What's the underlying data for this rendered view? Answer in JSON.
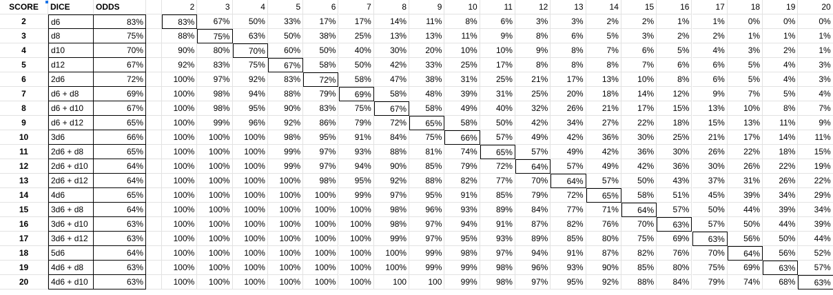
{
  "headers": {
    "score": "SCORE",
    "dice": "DICE",
    "odds": "ODDS",
    "columns": [
      "2",
      "3",
      "4",
      "5",
      "6",
      "7",
      "8",
      "9",
      "10",
      "11",
      "12",
      "13",
      "14",
      "15",
      "16",
      "17",
      "18",
      "19",
      "20"
    ]
  },
  "rows": [
    {
      "score": "2",
      "dice": "d6",
      "odds": "83%",
      "values": [
        "83%",
        "67%",
        "50%",
        "33%",
        "17%",
        "17%",
        "14%",
        "11%",
        "8%",
        "6%",
        "3%",
        "3%",
        "2%",
        "2%",
        "1%",
        "1%",
        "0%",
        "0%",
        "0%"
      ]
    },
    {
      "score": "3",
      "dice": "d8",
      "odds": "75%",
      "values": [
        "88%",
        "75%",
        "63%",
        "50%",
        "38%",
        "25%",
        "13%",
        "13%",
        "11%",
        "9%",
        "8%",
        "6%",
        "5%",
        "3%",
        "2%",
        "2%",
        "1%",
        "1%",
        "1%"
      ]
    },
    {
      "score": "4",
      "dice": "d10",
      "odds": "70%",
      "values": [
        "90%",
        "80%",
        "70%",
        "60%",
        "50%",
        "40%",
        "30%",
        "20%",
        "10%",
        "10%",
        "9%",
        "8%",
        "7%",
        "6%",
        "5%",
        "4%",
        "3%",
        "2%",
        "1%"
      ]
    },
    {
      "score": "5",
      "dice": "d12",
      "odds": "67%",
      "values": [
        "92%",
        "83%",
        "75%",
        "67%",
        "58%",
        "50%",
        "42%",
        "33%",
        "25%",
        "17%",
        "8%",
        "8%",
        "8%",
        "7%",
        "6%",
        "6%",
        "5%",
        "4%",
        "3%"
      ]
    },
    {
      "score": "6",
      "dice": "2d6",
      "odds": "72%",
      "values": [
        "100%",
        "97%",
        "92%",
        "83%",
        "72%",
        "58%",
        "47%",
        "38%",
        "31%",
        "25%",
        "21%",
        "17%",
        "13%",
        "10%",
        "8%",
        "6%",
        "5%",
        "4%",
        "3%"
      ]
    },
    {
      "score": "7",
      "dice": "d6 + d8",
      "odds": "69%",
      "values": [
        "100%",
        "98%",
        "94%",
        "88%",
        "79%",
        "69%",
        "58%",
        "48%",
        "39%",
        "31%",
        "25%",
        "20%",
        "18%",
        "14%",
        "12%",
        "9%",
        "7%",
        "5%",
        "4%"
      ]
    },
    {
      "score": "8",
      "dice": "d6 + d10",
      "odds": "67%",
      "values": [
        "100%",
        "98%",
        "95%",
        "90%",
        "83%",
        "75%",
        "67%",
        "58%",
        "49%",
        "40%",
        "32%",
        "26%",
        "21%",
        "17%",
        "15%",
        "13%",
        "10%",
        "8%",
        "7%"
      ]
    },
    {
      "score": "9",
      "dice": "d6 + d12",
      "odds": "65%",
      "values": [
        "100%",
        "99%",
        "96%",
        "92%",
        "86%",
        "79%",
        "72%",
        "65%",
        "58%",
        "50%",
        "42%",
        "34%",
        "27%",
        "22%",
        "18%",
        "15%",
        "13%",
        "11%",
        "9%"
      ]
    },
    {
      "score": "10",
      "dice": "3d6",
      "odds": "66%",
      "values": [
        "100%",
        "100%",
        "100%",
        "98%",
        "95%",
        "91%",
        "84%",
        "75%",
        "66%",
        "57%",
        "49%",
        "42%",
        "36%",
        "30%",
        "25%",
        "21%",
        "17%",
        "14%",
        "11%"
      ]
    },
    {
      "score": "11",
      "dice": "2d6 + d8",
      "odds": "65%",
      "values": [
        "100%",
        "100%",
        "100%",
        "99%",
        "97%",
        "93%",
        "88%",
        "81%",
        "74%",
        "65%",
        "57%",
        "49%",
        "42%",
        "36%",
        "30%",
        "26%",
        "22%",
        "18%",
        "15%"
      ]
    },
    {
      "score": "12",
      "dice": "2d6 + d10",
      "odds": "64%",
      "values": [
        "100%",
        "100%",
        "100%",
        "99%",
        "97%",
        "94%",
        "90%",
        "85%",
        "79%",
        "72%",
        "64%",
        "57%",
        "49%",
        "42%",
        "36%",
        "30%",
        "26%",
        "22%",
        "19%"
      ]
    },
    {
      "score": "13",
      "dice": "2d6 + d12",
      "odds": "64%",
      "values": [
        "100%",
        "100%",
        "100%",
        "100%",
        "98%",
        "95%",
        "92%",
        "88%",
        "82%",
        "77%",
        "70%",
        "64%",
        "57%",
        "50%",
        "43%",
        "37%",
        "31%",
        "26%",
        "22%"
      ]
    },
    {
      "score": "14",
      "dice": "4d6",
      "odds": "65%",
      "values": [
        "100%",
        "100%",
        "100%",
        "100%",
        "100%",
        "99%",
        "97%",
        "95%",
        "91%",
        "85%",
        "79%",
        "72%",
        "65%",
        "58%",
        "51%",
        "45%",
        "39%",
        "34%",
        "29%"
      ]
    },
    {
      "score": "15",
      "dice": "3d6 + d8",
      "odds": "64%",
      "values": [
        "100%",
        "100%",
        "100%",
        "100%",
        "100%",
        "100%",
        "98%",
        "96%",
        "93%",
        "89%",
        "84%",
        "77%",
        "71%",
        "64%",
        "57%",
        "50%",
        "44%",
        "39%",
        "34%"
      ]
    },
    {
      "score": "16",
      "dice": "3d6 + d10",
      "odds": "63%",
      "values": [
        "100%",
        "100%",
        "100%",
        "100%",
        "100%",
        "100%",
        "98%",
        "97%",
        "94%",
        "91%",
        "87%",
        "82%",
        "76%",
        "70%",
        "63%",
        "57%",
        "50%",
        "44%",
        "39%"
      ]
    },
    {
      "score": "17",
      "dice": "3d6 + d12",
      "odds": "63%",
      "values": [
        "100%",
        "100%",
        "100%",
        "100%",
        "100%",
        "100%",
        "99%",
        "97%",
        "95%",
        "93%",
        "89%",
        "85%",
        "80%",
        "75%",
        "69%",
        "63%",
        "56%",
        "50%",
        "44%"
      ]
    },
    {
      "score": "18",
      "dice": "5d6",
      "odds": "64%",
      "values": [
        "100%",
        "100%",
        "100%",
        "100%",
        "100%",
        "100%",
        "100%",
        "99%",
        "98%",
        "97%",
        "94%",
        "91%",
        "87%",
        "82%",
        "76%",
        "70%",
        "64%",
        "56%",
        "52%"
      ]
    },
    {
      "score": "19",
      "dice": "4d6 + d8",
      "odds": "63%",
      "values": [
        "100%",
        "100%",
        "100%",
        "100%",
        "100%",
        "100%",
        "100%",
        "99%",
        "99%",
        "98%",
        "96%",
        "93%",
        "90%",
        "85%",
        "80%",
        "75%",
        "69%",
        "63%",
        "57%"
      ]
    },
    {
      "score": "20",
      "dice": "4d6 + d10",
      "odds": "63%",
      "values": [
        "100%",
        "100%",
        "100%",
        "100%",
        "100%",
        "100%",
        "100",
        "100",
        "99%",
        "98%",
        "97%",
        "95%",
        "92%",
        "88%",
        "84%",
        "79%",
        "74%",
        "68%",
        "63%"
      ]
    }
  ]
}
